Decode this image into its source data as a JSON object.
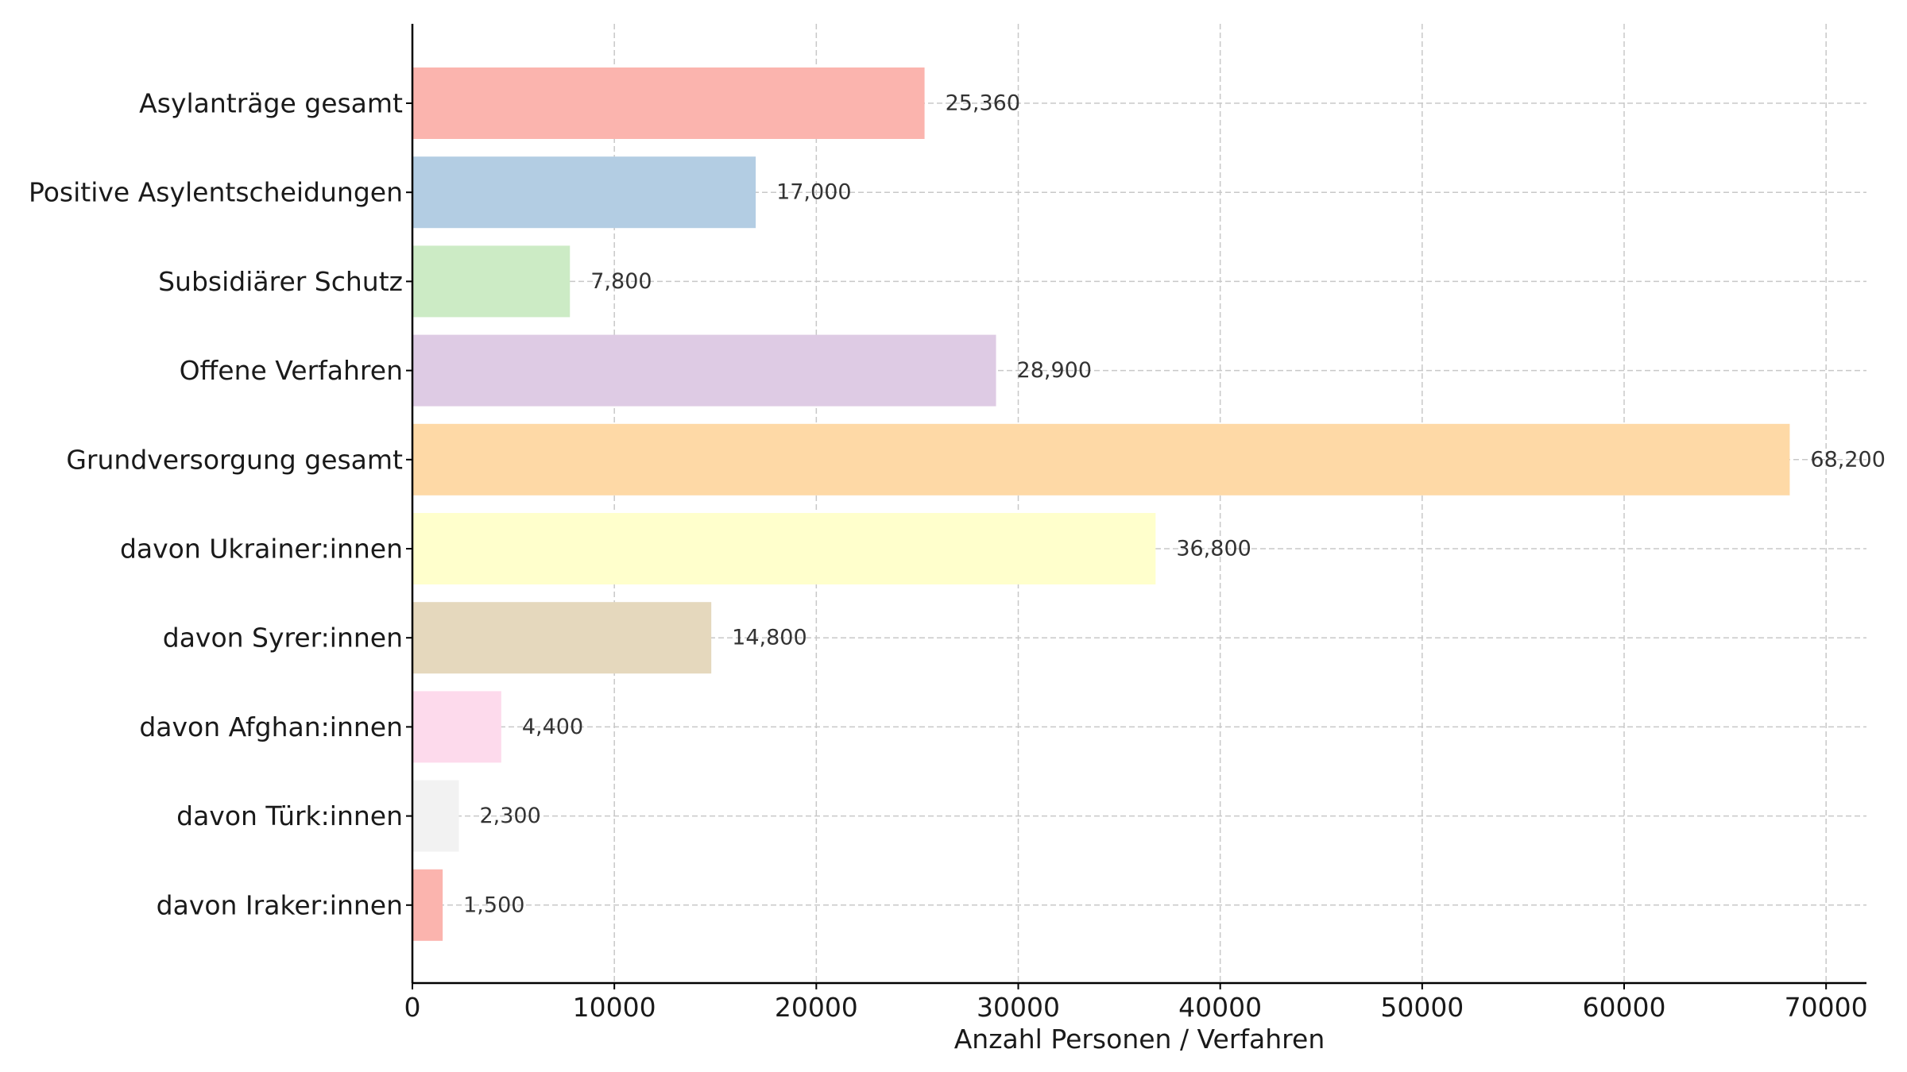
{
  "chart_data": {
    "type": "bar",
    "orientation": "horizontal",
    "title": "",
    "xlabel": "Anzahl Personen / Verfahren",
    "ylabel": "",
    "xlim": [
      0,
      72000
    ],
    "xticks": [
      0,
      10000,
      20000,
      30000,
      40000,
      50000,
      60000,
      70000
    ],
    "grid": true,
    "legend": "none",
    "categories": [
      "Asylanträge gesamt",
      "Positive Asylentscheidungen",
      "Subsidiärer Schutz",
      "Offene Verfahren",
      "Grundversorgung gesamt",
      "davon Ukrainer:innen",
      "davon Syrer:innen",
      "davon Afghan:innen",
      "davon Türk:innen",
      "davon Iraker:innen"
    ],
    "values": [
      25360,
      17000,
      7800,
      28900,
      68200,
      36800,
      14800,
      4400,
      2300,
      1500
    ],
    "value_labels": [
      "25,360",
      "17,000",
      "7,800",
      "28,900",
      "68,200",
      "36,800",
      "14,800",
      "4,400",
      "2,300",
      "1,500"
    ],
    "colors": [
      "#fbb4ae",
      "#b3cde3",
      "#ccebc5",
      "#decbe4",
      "#fed9a6",
      "#ffffcc",
      "#e5d8bd",
      "#fddaec",
      "#f2f2f2",
      "#fbb4ae"
    ]
  }
}
